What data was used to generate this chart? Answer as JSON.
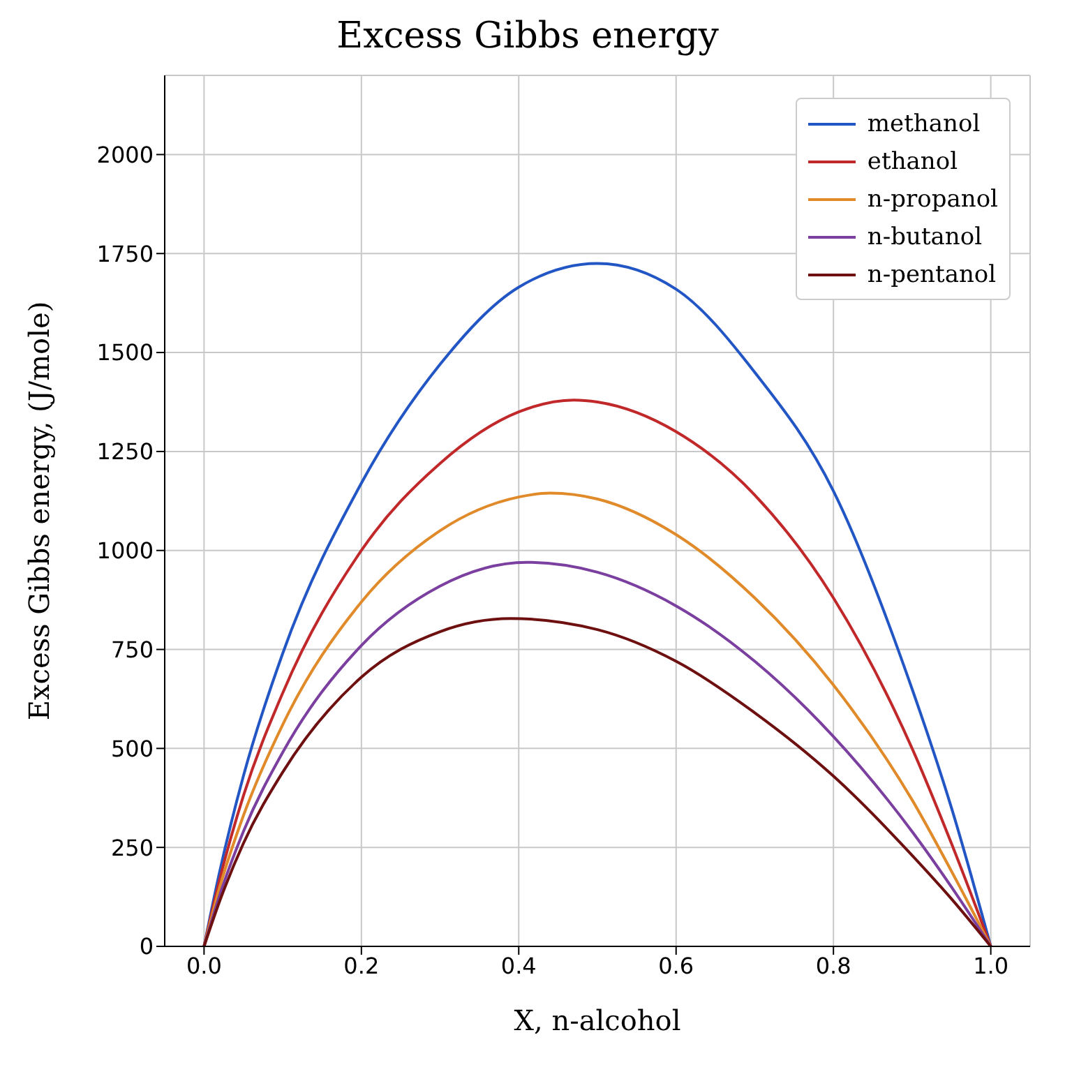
{
  "chart_data": {
    "type": "line",
    "title": "Excess Gibbs energy",
    "xlabel": "X, n-alcohol",
    "ylabel": "Excess Gibbs energy, (J/mole)",
    "xlim": [
      -0.05,
      1.05
    ],
    "xticks": [
      {
        "value": 0,
        "label": "0.0"
      },
      0.2,
      0.4,
      0.6,
      0.8,
      {
        "value": 1,
        "label": "1.0"
      }
    ],
    "ylim": [
      0,
      2200
    ],
    "yticks": [
      0,
      250,
      500,
      750,
      1000,
      1250,
      1500,
      1750,
      2000
    ],
    "grid": true,
    "legend": "top right",
    "series": [
      {
        "name": "methanol",
        "color": "#2256c4",
        "x": [
          0,
          0.02,
          0.05,
          0.1,
          0.2,
          0.3,
          0.4,
          0.5,
          0.6,
          0.7,
          0.8,
          0.9,
          0.95,
          1
        ],
        "values": [
          0,
          190,
          430,
          740,
          1170,
          1470,
          1665,
          1725,
          1660,
          1450,
          1150,
          650,
          350,
          0
        ]
      },
      {
        "name": "ethanol",
        "color": "#c0282a",
        "x": [
          0,
          0.02,
          0.05,
          0.1,
          0.2,
          0.3,
          0.4,
          0.47,
          0.5,
          0.6,
          0.7,
          0.8,
          0.9,
          0.95,
          1
        ],
        "values": [
          0,
          170,
          380,
          640,
          1000,
          1220,
          1350,
          1380,
          1375,
          1300,
          1140,
          880,
          500,
          260,
          0
        ]
      },
      {
        "name": "n-propanol",
        "color": "#e08a2a",
        "x": [
          0,
          0.02,
          0.05,
          0.1,
          0.2,
          0.3,
          0.4,
          0.44,
          0.5,
          0.6,
          0.7,
          0.8,
          0.9,
          0.95,
          1
        ],
        "values": [
          0,
          150,
          330,
          560,
          870,
          1050,
          1135,
          1145,
          1130,
          1040,
          880,
          660,
          370,
          190,
          0
        ]
      },
      {
        "name": "n-butanol",
        "color": "#7b3fa0",
        "x": [
          0,
          0.02,
          0.05,
          0.1,
          0.2,
          0.3,
          0.41,
          0.5,
          0.6,
          0.7,
          0.8,
          0.9,
          0.95,
          1
        ],
        "values": [
          0,
          130,
          290,
          490,
          760,
          910,
          970,
          945,
          860,
          720,
          530,
          290,
          150,
          0
        ]
      },
      {
        "name": "n-pentanol",
        "color": "#6e1010",
        "x": [
          0,
          0.02,
          0.05,
          0.1,
          0.2,
          0.3,
          0.39,
          0.5,
          0.6,
          0.7,
          0.8,
          0.9,
          0.95,
          1
        ],
        "values": [
          0,
          115,
          260,
          440,
          680,
          795,
          828,
          800,
          720,
          590,
          430,
          230,
          120,
          0
        ]
      }
    ]
  }
}
